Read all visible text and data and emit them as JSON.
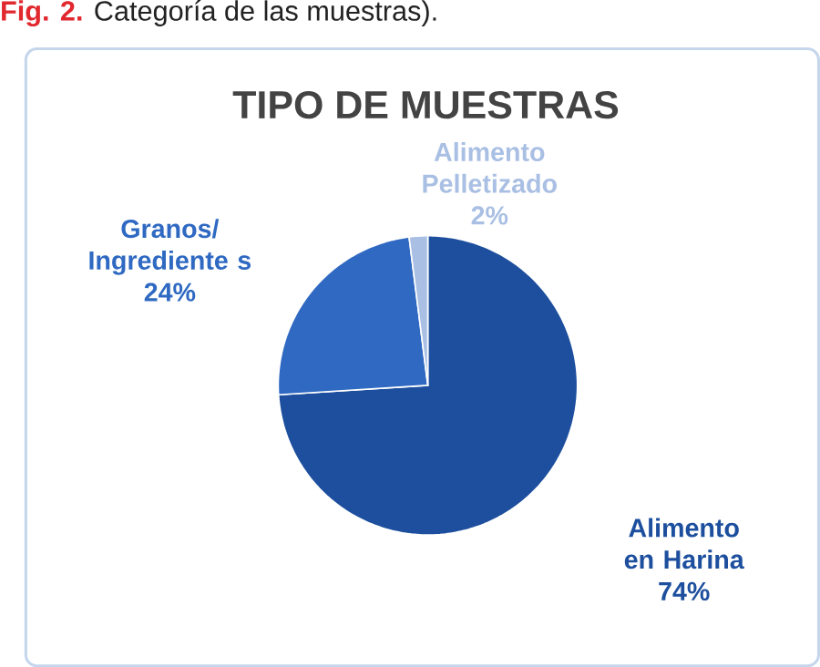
{
  "chart_data": {
    "type": "pie",
    "title": "TIPO DE MUESTRAS",
    "annotations": [
      "Fig. 2.",
      "Categoría de las muestras)."
    ],
    "categories": [
      "Alimento en Harina",
      "Granos/ Ingrediente s",
      "Alimento Pelletizado"
    ],
    "values": [
      74,
      24,
      2
    ],
    "value_labels": [
      "74%",
      "24%",
      "2%"
    ],
    "colors": [
      "#1d4f9e",
      "#2f69c2",
      "#a9bfe3"
    ]
  }
}
